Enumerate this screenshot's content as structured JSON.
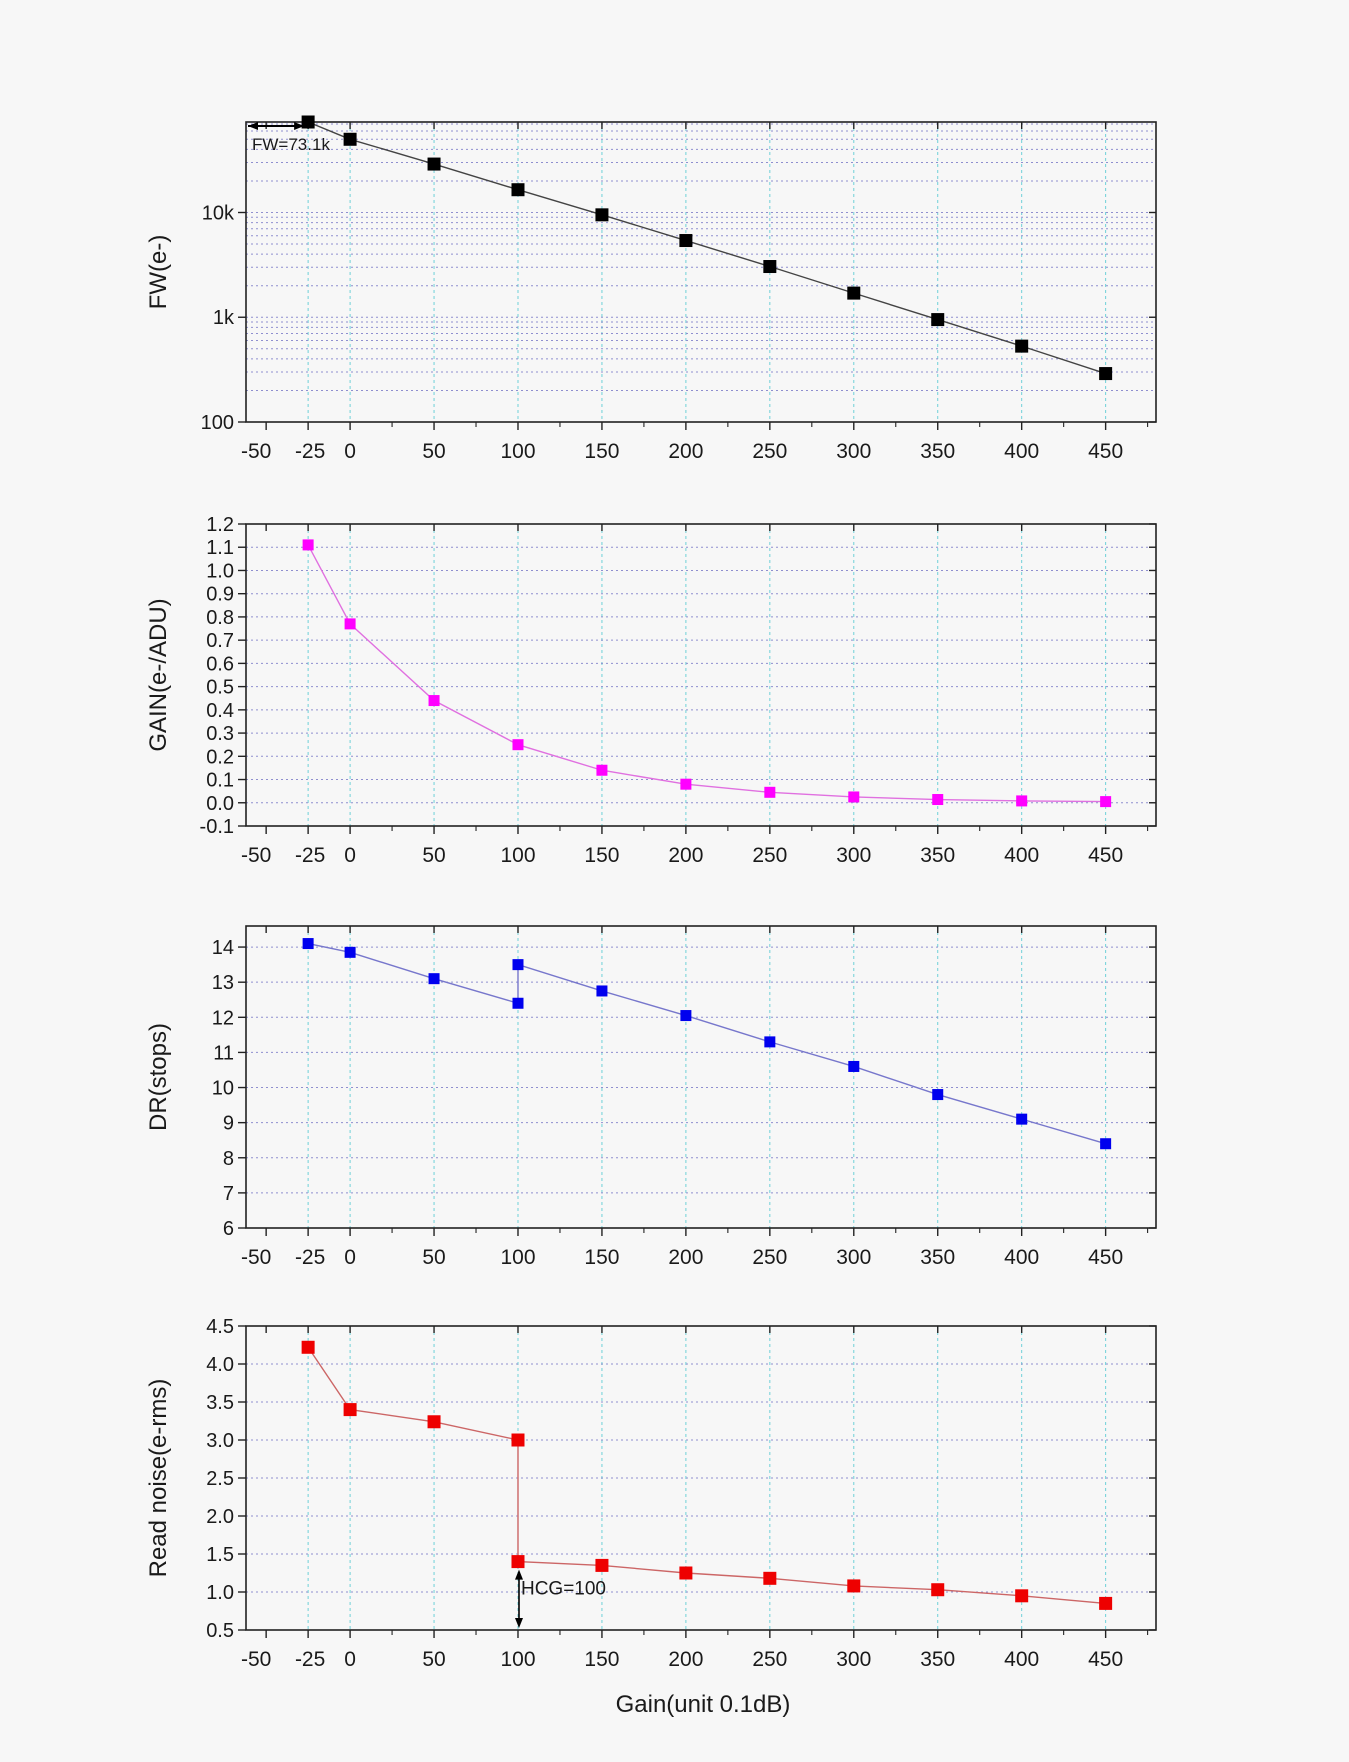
{
  "figure": {
    "x_axis_title": "Gain(unit 0.1dB)",
    "x_ticks": [
      -50,
      -25,
      0,
      50,
      100,
      150,
      200,
      250,
      300,
      350,
      400,
      450
    ]
  },
  "chart_data": [
    {
      "type": "scatter",
      "ylabel": "FW(e-)",
      "xlabel": "Gain(unit 0.1dB)",
      "y_scale": "log",
      "xlim": [
        -62,
        480
      ],
      "ylim": [
        100,
        73100
      ],
      "y_ticks": [
        100,
        1000,
        10000
      ],
      "y_tick_labels": [
        "100",
        "1k",
        "10k"
      ],
      "grid": true,
      "annotation": {
        "text": "FW=73.1k",
        "x": -25,
        "y": 73100
      },
      "series": [
        {
          "color": "#000000",
          "connected": true,
          "x": [
            -25,
            0,
            50,
            100,
            150,
            200,
            250,
            300,
            350,
            400,
            450
          ],
          "y": [
            73100,
            50000,
            29000,
            16500,
            9500,
            5400,
            3050,
            1700,
            950,
            530,
            290
          ]
        }
      ]
    },
    {
      "type": "scatter",
      "ylabel": "GAIN(e-/ADU)",
      "xlabel": "Gain(unit 0.1dB)",
      "y_scale": "linear",
      "xlim": [
        -62,
        480
      ],
      "ylim": [
        -0.1,
        1.2
      ],
      "y_ticks": [
        -0.1,
        0.0,
        0.1,
        0.2,
        0.3,
        0.4,
        0.5,
        0.6,
        0.7,
        0.8,
        0.9,
        1.0,
        1.1,
        1.2
      ],
      "y_tick_labels": [
        "-0.1",
        "0.0",
        "0.1",
        "0.2",
        "0.3",
        "0.4",
        "0.5",
        "0.6",
        "0.7",
        "0.8",
        "0.9",
        "1.0",
        "1.1",
        "1.2"
      ],
      "grid": true,
      "series": [
        {
          "color": "#ff00ff",
          "line_color": "#e070e0",
          "connected": true,
          "x": [
            -25,
            0,
            50,
            100,
            150,
            200,
            250,
            300,
            350,
            400,
            450
          ],
          "y": [
            1.11,
            0.77,
            0.44,
            0.25,
            0.14,
            0.08,
            0.045,
            0.025,
            0.014,
            0.008,
            0.005
          ]
        }
      ]
    },
    {
      "type": "scatter",
      "ylabel": "DR(stops)",
      "xlabel": "Gain(unit 0.1dB)",
      "y_scale": "linear",
      "xlim": [
        -62,
        480
      ],
      "ylim": [
        6,
        14.6
      ],
      "y_ticks": [
        6,
        7,
        8,
        9,
        10,
        11,
        12,
        13,
        14
      ],
      "y_tick_labels": [
        "6",
        "7",
        "8",
        "9",
        "10",
        "11",
        "12",
        "13",
        "14"
      ],
      "grid": true,
      "series": [
        {
          "color": "#0000ee",
          "line_color": "#7777cc",
          "connected": true,
          "x": [
            -25,
            0,
            50,
            100,
            100,
            150,
            200,
            250,
            300,
            350,
            400,
            450
          ],
          "y": [
            14.1,
            13.85,
            13.1,
            12.4,
            13.5,
            12.75,
            12.05,
            11.3,
            10.6,
            9.8,
            9.1,
            8.4
          ]
        }
      ]
    },
    {
      "type": "scatter",
      "ylabel": "Read noise(e-rms)",
      "xlabel": "Gain(unit 0.1dB)",
      "y_scale": "linear",
      "xlim": [
        -62,
        480
      ],
      "ylim": [
        0.5,
        4.5
      ],
      "y_ticks": [
        0.5,
        1.0,
        1.5,
        2.0,
        2.5,
        3.0,
        3.5,
        4.0,
        4.5
      ],
      "y_tick_labels": [
        "0.5",
        "1.0",
        "1.5",
        "2.0",
        "2.5",
        "3.0",
        "3.5",
        "4.0",
        "4.5"
      ],
      "grid": true,
      "annotation": {
        "text": "HCG=100",
        "x": 100
      },
      "series": [
        {
          "color": "#ee0000",
          "line_color": "#cc6666",
          "connected": true,
          "x": [
            -25,
            0,
            50,
            100,
            100,
            150,
            200,
            250,
            300,
            350,
            400,
            450
          ],
          "y": [
            4.22,
            3.4,
            3.24,
            3.0,
            1.4,
            1.35,
            1.25,
            1.18,
            1.08,
            1.03,
            0.95,
            0.85
          ]
        }
      ]
    }
  ]
}
